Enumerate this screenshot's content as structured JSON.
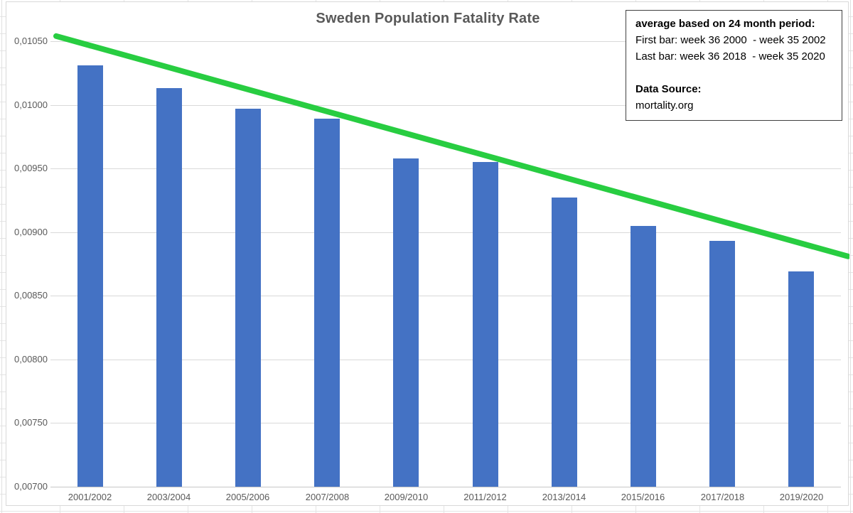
{
  "chart_data": {
    "type": "bar",
    "title": "Sweden Population Fatality Rate",
    "categories": [
      "2001/2002",
      "2003/2004",
      "2005/2006",
      "2007/2008",
      "2009/2010",
      "2011/2012",
      "2013/2014",
      "2015/2016",
      "2017/2018",
      "2019/2020"
    ],
    "values": [
      0.01031,
      0.01013,
      0.00997,
      0.00989,
      0.00958,
      0.00955,
      0.00927,
      0.00905,
      0.00893,
      0.00869
    ],
    "bar_color": "#4472C4",
    "y_axis": {
      "min": 0.007,
      "max": 0.0105,
      "step": 0.0005,
      "tick_labels": [
        "0,00700",
        "0,00750",
        "0,00800",
        "0,00850",
        "0,00900",
        "0,00950",
        "0,01000",
        "0,01050"
      ],
      "decimal_separator": ","
    },
    "xlabel": "",
    "ylabel": "",
    "grid": true,
    "legend": "none",
    "trendline": {
      "start_value": 0.01054,
      "end_value": 0.00881,
      "color": "#28CD41"
    }
  },
  "info_box": {
    "heading": "average based on 24 month period:",
    "first_bar_line": "First bar: week 36 2000  - week 35 2002",
    "last_bar_line": "Last bar: week 36 2018  - week 35 2020",
    "source_label": "Data Source:",
    "source_value": "mortality.org"
  }
}
